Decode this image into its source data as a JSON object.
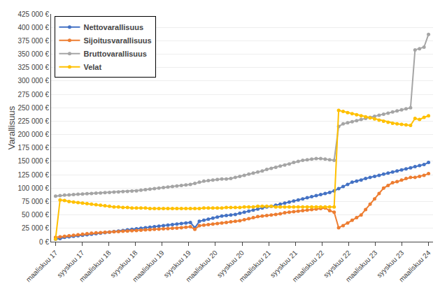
{
  "chart_data": {
    "type": "line",
    "ylabel": "Varallisuus",
    "x": [
      0,
      1,
      2,
      3,
      4,
      5,
      6,
      7,
      8,
      9,
      10,
      11,
      12,
      13,
      14,
      15,
      16,
      17,
      18,
      19,
      20,
      21,
      22,
      23,
      24,
      25,
      26,
      27,
      28,
      29,
      30,
      31,
      32,
      33,
      34,
      35,
      36,
      37,
      38,
      39,
      40,
      41,
      42,
      43,
      44,
      45,
      46,
      47,
      48,
      49,
      50,
      51,
      52,
      53,
      54,
      55,
      56,
      57,
      58,
      59,
      60,
      61,
      62,
      63,
      64,
      65,
      66,
      67,
      68,
      69,
      70,
      71,
      72,
      73,
      74,
      75,
      76,
      77,
      78,
      79,
      80,
      81,
      82,
      83
    ],
    "xlim": [
      -1,
      84
    ],
    "xticks": [
      {
        "value": 0,
        "label": "maaliskuu 17"
      },
      {
        "value": 5.928571428571429,
        "label": "syyskuu 17"
      },
      {
        "value": 11.857142857142858,
        "label": "maaliskuu 18"
      },
      {
        "value": 17.785714285714285,
        "label": "syyskuu 18"
      },
      {
        "value": 23.714285714285715,
        "label": "maaliskuu 19"
      },
      {
        "value": 29.642857142857142,
        "label": "syyskuu 19"
      },
      {
        "value": 35.57142857142857,
        "label": "maaliskuu 20"
      },
      {
        "value": 41.5,
        "label": "syyskuu 20"
      },
      {
        "value": 47.42857142857143,
        "label": "maaliskuu 21"
      },
      {
        "value": 53.357142857142854,
        "label": "syyskuu 21"
      },
      {
        "value": 59.285714285714285,
        "label": "maaliskuu 22"
      },
      {
        "value": 65.21428571428571,
        "label": "syyskuu 22"
      },
      {
        "value": 71.14285714285714,
        "label": "maaliskuu 23"
      },
      {
        "value": 77.07142857142857,
        "label": "syyskuu 23"
      },
      {
        "value": 83,
        "label": "maaliskuu 24"
      }
    ],
    "ylim": [
      0,
      425000
    ],
    "yticks": [
      {
        "value": 0,
        "label": "0 €"
      },
      {
        "value": 25000,
        "label": "25 000 €"
      },
      {
        "value": 50000,
        "label": "50 000 €"
      },
      {
        "value": 75000,
        "label": "75 000 €"
      },
      {
        "value": 100000,
        "label": "100 000 €"
      },
      {
        "value": 125000,
        "label": "125 000 €"
      },
      {
        "value": 150000,
        "label": "150 000 €"
      },
      {
        "value": 175000,
        "label": "175 000 €"
      },
      {
        "value": 200000,
        "label": "200 000 €"
      },
      {
        "value": 225000,
        "label": "225 000 €"
      },
      {
        "value": 250000,
        "label": "250 000 €"
      },
      {
        "value": 275000,
        "label": "275 000 €"
      },
      {
        "value": 300000,
        "label": "300 000 €"
      },
      {
        "value": 325000,
        "label": "325 000 €"
      },
      {
        "value": 350000,
        "label": "350 000 €"
      },
      {
        "value": 375000,
        "label": "375 000 €"
      },
      {
        "value": 400000,
        "label": "400 000 €"
      },
      {
        "value": 425000,
        "label": "425 000 €"
      }
    ],
    "grid": true,
    "legend": "upper left",
    "series": [
      {
        "name": "Nettovarallisuus",
        "color": "#4472C4",
        "marker": "circle",
        "values": [
          5000,
          6000,
          8000,
          9000,
          10000,
          11000,
          12000,
          13000,
          14000,
          15000,
          16000,
          17000,
          18000,
          19000,
          20000,
          21000,
          22000,
          23000,
          24000,
          25000,
          26000,
          27000,
          28000,
          29000,
          30000,
          31000,
          32000,
          33000,
          34000,
          35000,
          36000,
          26000,
          38000,
          40000,
          42000,
          44000,
          46000,
          48000,
          49000,
          50000,
          51000,
          53000,
          55000,
          57000,
          59000,
          61000,
          63000,
          65000,
          66000,
          68000,
          70000,
          72000,
          74000,
          76000,
          78000,
          80000,
          82000,
          84000,
          86000,
          88000,
          90000,
          92000,
          95000,
          99000,
          103000,
          107000,
          111000,
          113000,
          115000,
          118000,
          120000,
          122000,
          124000,
          126000,
          128000,
          130000,
          132000,
          134000,
          136000,
          138000,
          140000,
          142000,
          144000,
          148000
        ]
      },
      {
        "name": "Sijoitusvarallisuus",
        "color": "#ED7D31",
        "marker": "circle",
        "values": [
          8000,
          9000,
          10000,
          11000,
          12000,
          13000,
          14000,
          15000,
          16000,
          16500,
          17000,
          17500,
          18000,
          18500,
          19000,
          19500,
          20000,
          20500,
          21000,
          21500,
          22000,
          22500,
          23000,
          23500,
          24000,
          24500,
          25000,
          25500,
          26000,
          27000,
          28000,
          23000,
          30000,
          31000,
          32000,
          33000,
          34000,
          35000,
          36000,
          37000,
          38000,
          39000,
          41000,
          43000,
          45000,
          47000,
          48000,
          49000,
          50000,
          51000,
          52000,
          54000,
          55000,
          56000,
          57000,
          58000,
          59000,
          60000,
          61000,
          62000,
          63000,
          58000,
          55000,
          26000,
          30000,
          35000,
          40000,
          45000,
          50000,
          60000,
          70000,
          80000,
          90000,
          100000,
          105000,
          110000,
          112000,
          115000,
          118000,
          120000,
          120000,
          122000,
          124000,
          127000
        ]
      },
      {
        "name": "Bruttovarallisuus",
        "color": "#A5A5A5",
        "marker": "circle",
        "values": [
          85000,
          86000,
          87000,
          87500,
          88000,
          88500,
          89000,
          89500,
          90000,
          90500,
          91000,
          91500,
          92000,
          92500,
          93000,
          93500,
          94000,
          94500,
          95000,
          96000,
          97000,
          98000,
          99000,
          100000,
          101000,
          102000,
          103000,
          104000,
          105000,
          106000,
          107000,
          109000,
          111000,
          113000,
          114000,
          115000,
          116000,
          117000,
          117000,
          118000,
          120000,
          122000,
          124000,
          126000,
          128000,
          130000,
          132000,
          135000,
          137000,
          139000,
          141000,
          143000,
          145000,
          148000,
          150000,
          152000,
          153000,
          154000,
          155000,
          155000,
          154000,
          153000,
          152000,
          215000,
          220000,
          222000,
          224000,
          226000,
          228000,
          230000,
          232000,
          234000,
          236000,
          238000,
          240000,
          242000,
          244000,
          246000,
          248000,
          250000,
          358000,
          360000,
          363000,
          387000
        ]
      },
      {
        "name": "Velat",
        "color": "#FFC000",
        "marker": "circle",
        "values": [
          5000,
          78000,
          77000,
          75000,
          74000,
          73000,
          72000,
          71000,
          70000,
          69000,
          68000,
          67000,
          66000,
          65000,
          65000,
          64000,
          64000,
          63000,
          63000,
          63000,
          63000,
          62000,
          62000,
          62000,
          62000,
          62000,
          62000,
          62000,
          62000,
          62000,
          62000,
          62000,
          62000,
          63000,
          63000,
          63000,
          63000,
          63000,
          64000,
          64000,
          64000,
          64000,
          65000,
          65000,
          65000,
          66000,
          66000,
          66000,
          66000,
          65000,
          65000,
          65000,
          65000,
          65000,
          65000,
          65000,
          65000,
          65000,
          65000,
          65000,
          65000,
          65000,
          65000,
          245000,
          243000,
          241000,
          239000,
          237000,
          235000,
          233000,
          231000,
          229000,
          227000,
          225000,
          223000,
          221000,
          220000,
          219000,
          218000,
          217000,
          230000,
          228000,
          232000,
          235000
        ]
      }
    ]
  }
}
